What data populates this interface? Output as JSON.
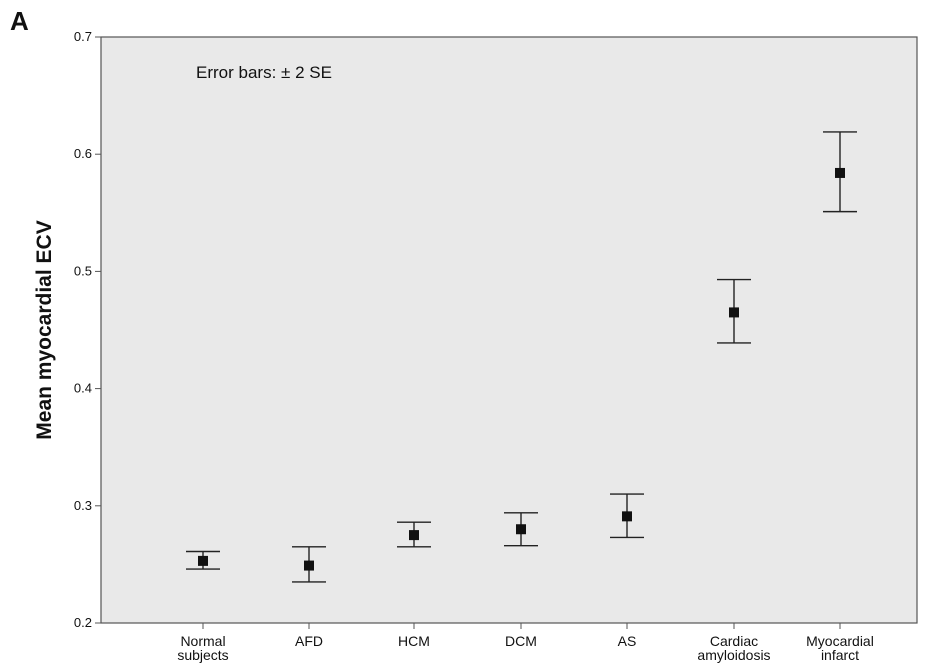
{
  "panel_label": "A",
  "chart_data": {
    "type": "scatter",
    "ylabel": "Mean myocardial ECV",
    "xlabel": "",
    "annotation": "Error bars: ± 2 SE",
    "ylim": [
      0.2,
      0.7
    ],
    "yticks": [
      "0.2",
      "0.3",
      "0.4",
      "0.5",
      "0.6",
      "0.7"
    ],
    "categories": [
      [
        "Normal",
        "subjects"
      ],
      [
        "AFD"
      ],
      [
        "HCM"
      ],
      [
        "DCM"
      ],
      [
        "AS"
      ],
      [
        "Cardiac",
        "amyloidosis"
      ],
      [
        "Myocardial",
        "infarct"
      ]
    ],
    "values": [
      0.253,
      0.249,
      0.275,
      0.28,
      0.291,
      0.465,
      0.584
    ],
    "error_low": [
      0.246,
      0.235,
      0.265,
      0.266,
      0.273,
      0.439,
      0.551
    ],
    "error_high": [
      0.261,
      0.265,
      0.286,
      0.294,
      0.31,
      0.493,
      0.619
    ],
    "grid": false,
    "colors": {
      "plot_background": "#e9e9e9",
      "marker": "#111111",
      "axis": "#555555"
    }
  }
}
